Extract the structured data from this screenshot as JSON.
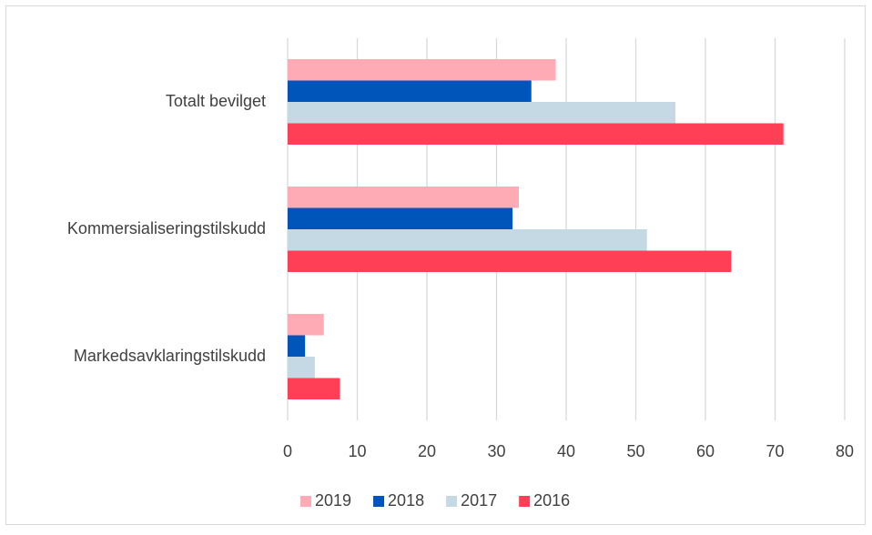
{
  "chart_data": {
    "type": "bar",
    "orientation": "horizontal",
    "categories": [
      "Totalt bevilget",
      "Kommersialiseringstilskudd",
      "Markedsavklaringstilskudd"
    ],
    "series": [
      {
        "name": "2019",
        "color": "#ffabb6",
        "values": [
          38.5,
          33.2,
          5.2
        ]
      },
      {
        "name": "2018",
        "color": "#0055bb",
        "values": [
          35,
          32.3,
          2.5
        ]
      },
      {
        "name": "2017",
        "color": "#c5d9e4",
        "values": [
          55.7,
          51.6,
          3.9
        ]
      },
      {
        "name": "2016",
        "color": "#ff3f55",
        "values": [
          71.2,
          63.7,
          7.5
        ]
      }
    ],
    "xlim": [
      0,
      80
    ],
    "xticks": [
      0,
      10,
      20,
      30,
      40,
      50,
      60,
      70,
      80
    ],
    "grid": true,
    "legend": "bottom"
  }
}
